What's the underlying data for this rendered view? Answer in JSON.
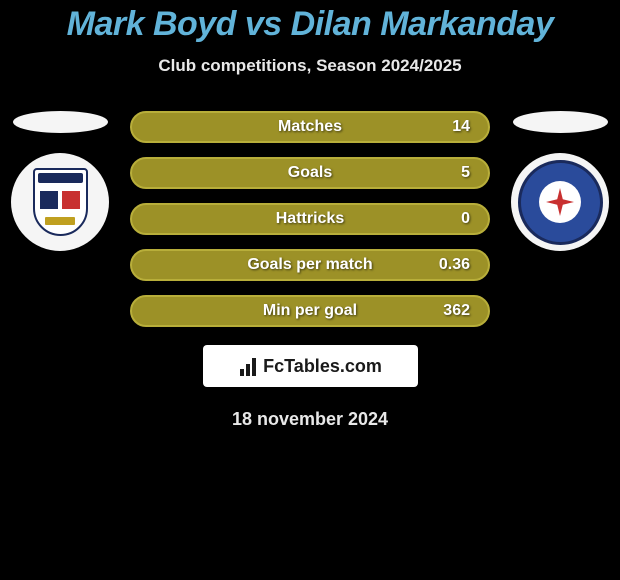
{
  "header": {
    "title": "Mark Boyd vs Dilan Markanday",
    "subtitle": "Club competitions, Season 2024/2025"
  },
  "stats": [
    {
      "label": "Matches",
      "value": "14"
    },
    {
      "label": "Goals",
      "value": "5"
    },
    {
      "label": "Hattricks",
      "value": "0"
    },
    {
      "label": "Goals per match",
      "value": "0.36"
    },
    {
      "label": "Min per goal",
      "value": "362"
    }
  ],
  "branding": {
    "text": "FcTables.com"
  },
  "date": "18 november 2024",
  "colors": {
    "title": "#61b3d9",
    "pill_bg": "#9c9127",
    "pill_border": "#b8ae3a",
    "bg": "#000000",
    "text_light": "#e8e8e8",
    "crest_left_primary": "#1a2a5c",
    "crest_left_accent": "#c83030",
    "crest_right_bg": "#2a4b9b"
  }
}
